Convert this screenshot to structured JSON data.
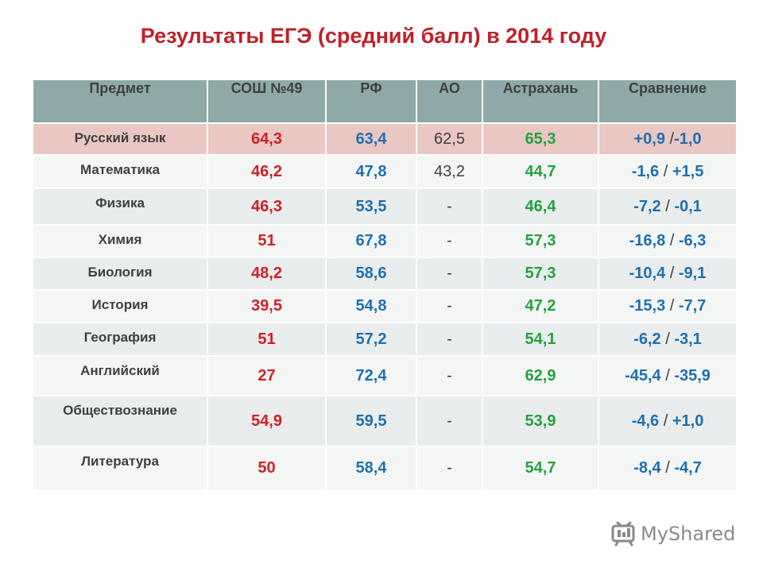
{
  "title": "Результаты ЕГЭ (средний балл) в 2014 году",
  "headers": [
    "Предмет",
    "СОШ №49",
    "РФ",
    "АО",
    "Астрахань",
    "Сравнение"
  ],
  "rows": [
    {
      "subject": "Русский язык",
      "school": "64,3",
      "rf": "63,4",
      "ao": "62,5",
      "astrakhan": "65,3",
      "cmp_a": "+0,9",
      "cmp_sep": " /",
      "cmp_b": "-1,0"
    },
    {
      "subject": "Математика",
      "school": "46,2",
      "rf": "47,8",
      "ao": "43,2",
      "astrakhan": "44,7",
      "cmp_a": "-1,6",
      "cmp_sep": " / ",
      "cmp_b": "+1,5"
    },
    {
      "subject": "Физика",
      "school": "46,3",
      "rf": "53,5",
      "ao": "-",
      "astrakhan": "46,4",
      "cmp_a": "-7,2",
      "cmp_sep": " / ",
      "cmp_b": "-0,1"
    },
    {
      "subject": "Химия",
      "school": "51",
      "rf": "67,8",
      "ao": "-",
      "astrakhan": "57,3",
      "cmp_a": "-16,8",
      "cmp_sep": " / ",
      "cmp_b": "-6,3"
    },
    {
      "subject": "Биология",
      "school": "48,2",
      "rf": "58,6",
      "ao": "-",
      "astrakhan": "57,3",
      "cmp_a": "-10,4",
      "cmp_sep": " / ",
      "cmp_b": "-9,1"
    },
    {
      "subject": "История",
      "school": "39,5",
      "rf": "54,8",
      "ao": "-",
      "astrakhan": "47,2",
      "cmp_a": "-15,3",
      "cmp_sep": " / ",
      "cmp_b": "-7,7"
    },
    {
      "subject": "География",
      "school": "51",
      "rf": "57,2",
      "ao": "-",
      "astrakhan": "54,1",
      "cmp_a": "-6,2",
      "cmp_sep": " / ",
      "cmp_b": "-3,1"
    },
    {
      "subject": "Английский",
      "school": "27",
      "rf": "72,4",
      "ao": "-",
      "astrakhan": "62,9",
      "cmp_a": "-45,4",
      "cmp_sep": " / ",
      "cmp_b": "-35,9"
    },
    {
      "subject": "Обществознание",
      "school": "54,9",
      "rf": "59,5",
      "ao": "-",
      "astrakhan": "53,9",
      "cmp_a": "-4,6",
      "cmp_sep": " / ",
      "cmp_b": "+1,0"
    },
    {
      "subject": "Литература",
      "school": "50",
      "rf": "58,4",
      "ao": "-",
      "astrakhan": "54,7",
      "cmp_a": "-8,4",
      "cmp_sep": " / ",
      "cmp_b": "-4,7"
    }
  ],
  "watermark": {
    "text": "MyShared",
    "icon": "myshared-logo-icon"
  },
  "colors": {
    "title": "#c0202a",
    "header_bg": "#8fa8a8",
    "highlight_row": "#eac7c3",
    "school": "#d11f26",
    "rf": "#1f6fb0",
    "astrakhan": "#23a23c"
  }
}
